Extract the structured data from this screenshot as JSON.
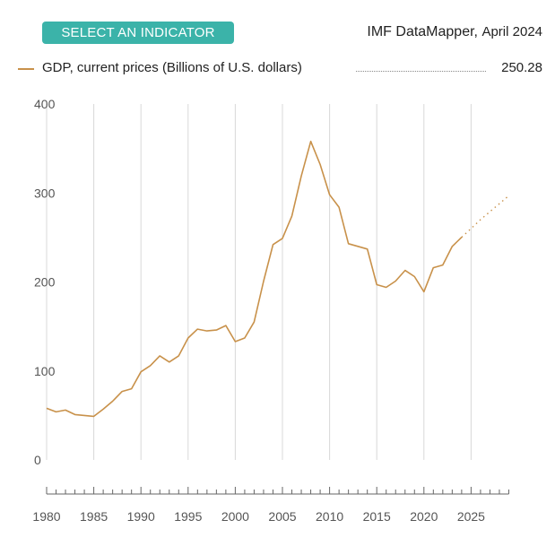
{
  "header": {
    "select_button_label": "SELECT AN INDICATOR",
    "brand": "IMF DataMapper,",
    "edition": "April 2024"
  },
  "legend": {
    "label": "GDP, current prices (Billions of U.S. dollars)",
    "value": "250.28",
    "color": "#c8914a"
  },
  "chart_data": {
    "type": "line",
    "title": "",
    "xlabel": "",
    "ylabel": "",
    "xlim": [
      1980,
      2029
    ],
    "ylim": [
      0,
      400
    ],
    "y_ticks": [
      "0",
      "100",
      "200",
      "300",
      "400"
    ],
    "x_ticks": [
      "1980",
      "1985",
      "1990",
      "1995",
      "2000",
      "2005",
      "2010",
      "2015",
      "2020",
      "2025"
    ],
    "grid": "vertical",
    "series": [
      {
        "name": "GDP, current prices (Billions of U.S. dollars)",
        "color": "#c8914a",
        "x": [
          1980,
          1981,
          1982,
          1983,
          1984,
          1985,
          1986,
          1987,
          1988,
          1989,
          1990,
          1991,
          1992,
          1993,
          1994,
          1995,
          1996,
          1997,
          1998,
          1999,
          2000,
          2001,
          2002,
          2003,
          2004,
          2005,
          2006,
          2007,
          2008,
          2009,
          2010,
          2011,
          2012,
          2013,
          2014,
          2015,
          2016,
          2017,
          2018,
          2019,
          2020,
          2021,
          2022,
          2023,
          2024
        ],
        "values": [
          58,
          54,
          56,
          51,
          50,
          49,
          57,
          66,
          77,
          80,
          99,
          106,
          117,
          110,
          117,
          137,
          147,
          145,
          146,
          151,
          133,
          137,
          155,
          201,
          242,
          249,
          274,
          319,
          358,
          332,
          298,
          284,
          243,
          240,
          237,
          197,
          194,
          201,
          213,
          206,
          189,
          216,
          219,
          240,
          250.28
        ]
      },
      {
        "name": "",
        "projection": true,
        "color": "#c8914a",
        "x": [
          2024,
          2025,
          2026,
          2027,
          2028,
          2029
        ],
        "values": [
          250.28,
          260,
          270,
          279,
          288,
          297
        ]
      }
    ]
  }
}
